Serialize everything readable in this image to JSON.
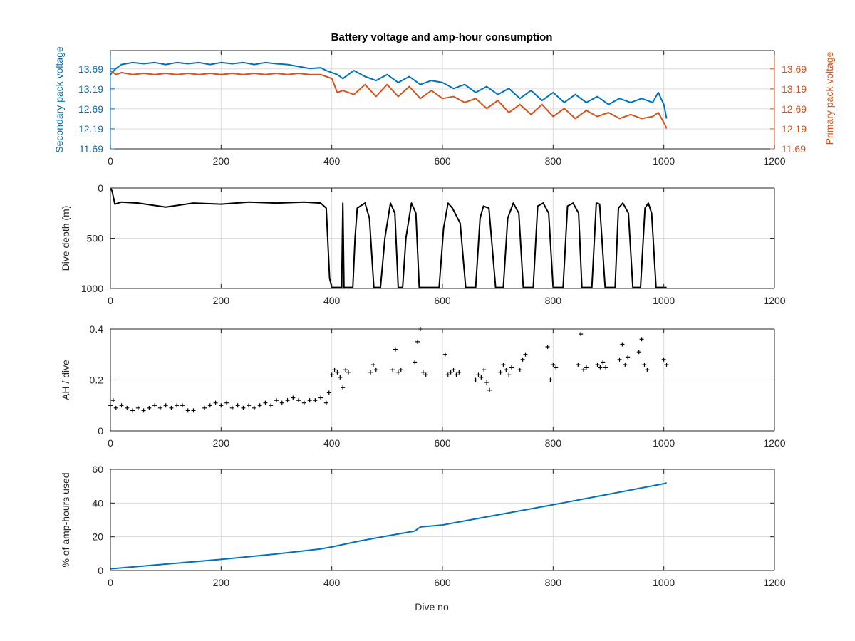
{
  "figure_title": "Battery voltage and amp-hour consumption",
  "colors": {
    "secondary": "#0072BD",
    "primary": "#D95319",
    "black": "#000000",
    "grid": "#DCDCDC",
    "axis": "#262626",
    "background": "#FFFFFF"
  },
  "chart_data": [
    {
      "type": "line",
      "id": "voltage",
      "title": "Battery voltage and amp-hour consumption",
      "xlabel": "",
      "xlim": [
        0,
        1200
      ],
      "xticks": [
        0,
        200,
        400,
        600,
        800,
        1000,
        1200
      ],
      "grid": true,
      "ylabel_left": "Secondary pack voltage",
      "ylim_left": [
        11.69,
        14.15
      ],
      "yticks_left": [
        11.69,
        12.19,
        12.69,
        13.19,
        13.69
      ],
      "ylabel_right": "Primary pack voltage",
      "ylim_right": [
        11.69,
        14.15
      ],
      "yticks_right": [
        11.69,
        12.19,
        12.69,
        13.19,
        13.69
      ],
      "series": [
        {
          "axis": "left",
          "color": "#0072BD",
          "x": [
            0,
            10,
            20,
            40,
            60,
            80,
            100,
            120,
            140,
            160,
            180,
            200,
            220,
            240,
            260,
            280,
            300,
            320,
            340,
            360,
            380,
            390,
            400,
            410,
            420,
            440,
            460,
            480,
            500,
            520,
            540,
            560,
            580,
            600,
            620,
            640,
            660,
            680,
            700,
            720,
            740,
            760,
            780,
            800,
            820,
            840,
            860,
            880,
            900,
            920,
            940,
            960,
            980,
            990,
            1000,
            1005
          ],
          "y": [
            13.55,
            13.7,
            13.8,
            13.85,
            13.82,
            13.85,
            13.8,
            13.85,
            13.82,
            13.85,
            13.8,
            13.85,
            13.82,
            13.85,
            13.8,
            13.85,
            13.82,
            13.8,
            13.75,
            13.7,
            13.72,
            13.65,
            13.6,
            13.55,
            13.45,
            13.65,
            13.5,
            13.4,
            13.55,
            13.35,
            13.5,
            13.3,
            13.4,
            13.35,
            13.2,
            13.3,
            13.1,
            13.25,
            13.05,
            13.2,
            12.95,
            13.15,
            12.9,
            13.1,
            12.85,
            13.05,
            12.85,
            13.0,
            12.8,
            12.95,
            12.85,
            12.95,
            12.85,
            13.1,
            12.8,
            12.45
          ]
        },
        {
          "axis": "right",
          "color": "#D95319",
          "x": [
            0,
            10,
            20,
            40,
            60,
            80,
            100,
            120,
            140,
            160,
            180,
            200,
            220,
            240,
            260,
            280,
            300,
            320,
            340,
            360,
            380,
            390,
            400,
            410,
            420,
            440,
            460,
            480,
            500,
            520,
            540,
            560,
            580,
            600,
            620,
            640,
            660,
            680,
            700,
            720,
            740,
            760,
            780,
            800,
            820,
            840,
            860,
            880,
            900,
            920,
            940,
            960,
            980,
            990,
            1000,
            1005
          ],
          "y": [
            13.65,
            13.55,
            13.6,
            13.55,
            13.58,
            13.55,
            13.58,
            13.55,
            13.58,
            13.55,
            13.58,
            13.55,
            13.58,
            13.55,
            13.58,
            13.55,
            13.58,
            13.55,
            13.58,
            13.55,
            13.55,
            13.5,
            13.45,
            13.1,
            13.15,
            13.05,
            13.3,
            13.0,
            13.3,
            13.0,
            13.25,
            12.95,
            13.15,
            12.95,
            13.0,
            12.85,
            12.95,
            12.7,
            12.9,
            12.6,
            12.8,
            12.55,
            12.8,
            12.5,
            12.7,
            12.45,
            12.65,
            12.5,
            12.6,
            12.45,
            12.55,
            12.45,
            12.5,
            12.6,
            12.35,
            12.2
          ]
        }
      ]
    },
    {
      "type": "line",
      "id": "depth",
      "xlabel": "",
      "ylabel": "Dive depth (m)",
      "ylim": [
        0,
        1000
      ],
      "y_reversed": true,
      "yticks": [
        0,
        500,
        1000
      ],
      "xlim": [
        0,
        1200
      ],
      "xticks": [
        0,
        200,
        400,
        600,
        800,
        1000,
        1200
      ],
      "grid": true,
      "series": [
        {
          "color": "#000000",
          "x": [
            0,
            3,
            8,
            20,
            50,
            100,
            150,
            200,
            250,
            300,
            350,
            380,
            390,
            396,
            400,
            410,
            418,
            420,
            422,
            424,
            438,
            442,
            446,
            460,
            468,
            476,
            482,
            488,
            496,
            506,
            514,
            520,
            528,
            534,
            544,
            552,
            558,
            566,
            574,
            584,
            594,
            602,
            610,
            618,
            632,
            642,
            650,
            660,
            668,
            674,
            684,
            696,
            704,
            710,
            718,
            728,
            738,
            746,
            754,
            764,
            772,
            782,
            792,
            800,
            808,
            818,
            826,
            836,
            846,
            852,
            860,
            870,
            878,
            884,
            894,
            904,
            912,
            918,
            926,
            936,
            944,
            950,
            958,
            966,
            972,
            978,
            986,
            994,
            1000,
            1005
          ],
          "y": [
            0,
            30,
            160,
            140,
            150,
            190,
            150,
            160,
            140,
            150,
            140,
            150,
            200,
            900,
            990,
            990,
            990,
            150,
            990,
            990,
            990,
            500,
            200,
            150,
            300,
            990,
            990,
            990,
            500,
            150,
            250,
            990,
            990,
            500,
            150,
            250,
            990,
            990,
            990,
            990,
            990,
            400,
            150,
            200,
            350,
            990,
            990,
            990,
            300,
            180,
            200,
            990,
            990,
            990,
            300,
            150,
            250,
            990,
            990,
            990,
            180,
            150,
            250,
            990,
            990,
            990,
            180,
            150,
            250,
            990,
            990,
            990,
            150,
            160,
            990,
            990,
            990,
            200,
            150,
            250,
            990,
            990,
            990,
            200,
            150,
            250,
            990,
            990,
            990,
            990
          ]
        }
      ]
    },
    {
      "type": "scatter",
      "id": "ah-per-dive",
      "xlabel": "",
      "ylabel": "AH / dive",
      "ylim": [
        0,
        0.4
      ],
      "yticks": [
        0,
        0.2,
        0.4
      ],
      "xlim": [
        0,
        1200
      ],
      "xticks": [
        0,
        200,
        400,
        600,
        800,
        1000,
        1200
      ],
      "grid": true,
      "series": [
        {
          "color": "#000000",
          "marker": "+",
          "x": [
            0,
            5,
            10,
            20,
            30,
            40,
            50,
            60,
            70,
            80,
            90,
            100,
            110,
            120,
            130,
            140,
            150,
            170,
            180,
            190,
            200,
            210,
            220,
            230,
            240,
            250,
            260,
            270,
            280,
            290,
            300,
            310,
            320,
            330,
            340,
            350,
            360,
            370,
            380,
            390,
            395,
            400,
            405,
            410,
            415,
            420,
            425,
            430,
            470,
            475,
            480,
            510,
            515,
            520,
            525,
            550,
            555,
            560,
            565,
            570,
            605,
            610,
            615,
            620,
            625,
            630,
            660,
            665,
            670,
            675,
            680,
            685,
            705,
            710,
            715,
            720,
            725,
            740,
            745,
            750,
            790,
            795,
            800,
            805,
            845,
            850,
            855,
            860,
            880,
            885,
            890,
            895,
            920,
            925,
            930,
            935,
            955,
            960,
            965,
            970,
            1000,
            1005
          ],
          "y": [
            0.1,
            0.12,
            0.09,
            0.1,
            0.09,
            0.08,
            0.09,
            0.08,
            0.09,
            0.1,
            0.09,
            0.1,
            0.09,
            0.1,
            0.1,
            0.08,
            0.08,
            0.09,
            0.1,
            0.11,
            0.1,
            0.11,
            0.09,
            0.1,
            0.09,
            0.1,
            0.09,
            0.1,
            0.11,
            0.1,
            0.12,
            0.11,
            0.12,
            0.13,
            0.12,
            0.11,
            0.12,
            0.12,
            0.13,
            0.11,
            0.15,
            0.22,
            0.24,
            0.23,
            0.21,
            0.17,
            0.24,
            0.23,
            0.23,
            0.26,
            0.24,
            0.24,
            0.32,
            0.23,
            0.24,
            0.27,
            0.35,
            0.4,
            0.23,
            0.22,
            0.3,
            0.22,
            0.23,
            0.24,
            0.22,
            0.23,
            0.2,
            0.22,
            0.21,
            0.24,
            0.19,
            0.16,
            0.23,
            0.26,
            0.24,
            0.22,
            0.25,
            0.24,
            0.28,
            0.3,
            0.33,
            0.2,
            0.26,
            0.25,
            0.26,
            0.38,
            0.24,
            0.25,
            0.26,
            0.25,
            0.27,
            0.25,
            0.28,
            0.34,
            0.26,
            0.29,
            0.31,
            0.36,
            0.26,
            0.24,
            0.28,
            0.26
          ]
        }
      ]
    },
    {
      "type": "line",
      "id": "pct-used",
      "xlabel": "Dive no",
      "ylabel": "% of amp-hours used",
      "ylim": [
        0,
        60
      ],
      "yticks": [
        0,
        20,
        40,
        60
      ],
      "xlim": [
        0,
        1200
      ],
      "xticks": [
        0,
        200,
        400,
        600,
        800,
        1000,
        1200
      ],
      "grid": true,
      "series": [
        {
          "color": "#0072BD",
          "x": [
            0,
            100,
            200,
            300,
            380,
            400,
            450,
            500,
            550,
            560,
            600,
            700,
            800,
            900,
            1000,
            1005
          ],
          "y": [
            1,
            3.8,
            6.6,
            9.8,
            12.8,
            14,
            17.5,
            20.5,
            23.4,
            25.8,
            27,
            33,
            39,
            45.2,
            51.5,
            52
          ]
        }
      ]
    }
  ]
}
